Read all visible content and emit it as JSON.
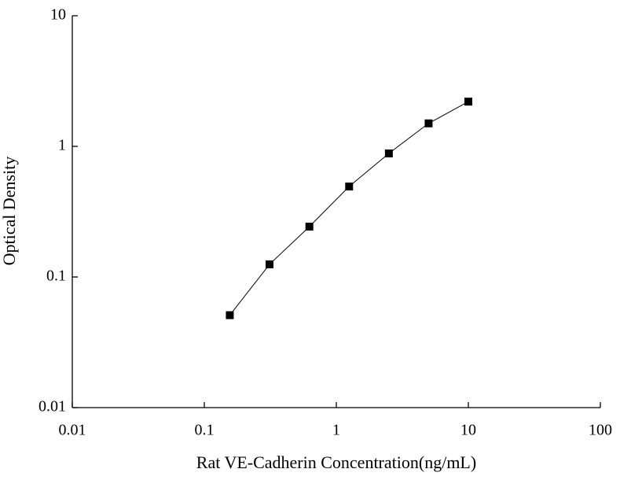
{
  "chart_data": {
    "type": "line",
    "x_label": "Rat VE-Cadherin Concentration(ng/mL)",
    "y_label": "Optical Density",
    "x": [
      0.156,
      0.312,
      0.625,
      1.25,
      2.5,
      5,
      10
    ],
    "series": [
      {
        "color": "#000000",
        "values": [
          0.051,
          0.125,
          0.243,
          0.493,
          0.883,
          1.5,
          2.2
        ]
      }
    ],
    "xlim": [
      0.01,
      100
    ],
    "xticks": [
      0.01,
      0.1,
      1,
      10,
      100
    ],
    "ylim": [
      0.01,
      10
    ],
    "yticks": [
      0.01,
      0.1,
      1,
      10
    ],
    "xscale": "log",
    "yscale": "log",
    "grid": false
  }
}
